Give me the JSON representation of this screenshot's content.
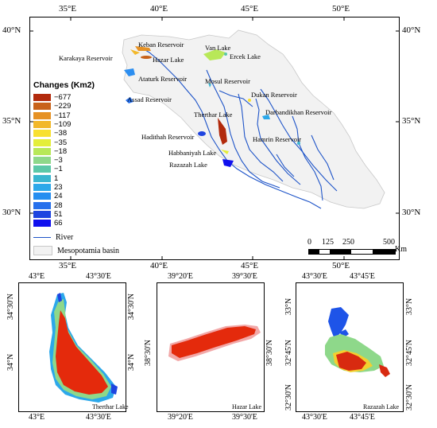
{
  "main_map": {
    "top_lon": [
      "35°E",
      "40°E",
      "45°E",
      "50°E"
    ],
    "bottom_lon": [
      "35°E",
      "40°E",
      "45°E",
      "50°E"
    ],
    "left_lat": [
      "40°N",
      "35°N",
      "30°N"
    ],
    "right_lat": [
      "40°N",
      "35°N",
      "30°N"
    ],
    "places": {
      "keban": "Keban Reservoir",
      "van": "Van Lake",
      "ercek": "Ercek Lake",
      "karakaya": "Karakaya Reservoir",
      "hazar": "Hazar Lake",
      "ataturk": "Ataturk Reservoir",
      "mosul": "Mosul Reservoir",
      "dukan": "Dukan Reservoir",
      "assad": "Assad Reservoir",
      "therthar": "Therthar Lake",
      "darbandikhan": "Darbandikhan Reservoir",
      "haditha": "Hadithah Reservoir",
      "hamrin": "Hamrin Reservoir",
      "habbaniyah": "Habbaniyah Lake",
      "razazah": "Razazah Lake"
    },
    "legend": {
      "title": "Changes (Km2)",
      "items": [
        {
          "label": "−677",
          "color": "#b22a0c"
        },
        {
          "label": "−229",
          "color": "#c8621a"
        },
        {
          "label": "−117",
          "color": "#e69225"
        },
        {
          "label": "−109",
          "color": "#f2b82a"
        },
        {
          "label": "−38",
          "color": "#f8e030"
        },
        {
          "label": "−35",
          "color": "#e4ee3a"
        },
        {
          "label": "−18",
          "color": "#b8e858"
        },
        {
          "label": "−3",
          "color": "#8ed88a"
        },
        {
          "label": "−1",
          "color": "#5cc8a8"
        },
        {
          "label": "1",
          "color": "#3ab6d0"
        },
        {
          "label": "23",
          "color": "#2ca8ea"
        },
        {
          "label": "24",
          "color": "#268ef0"
        },
        {
          "label": "28",
          "color": "#2670ec"
        },
        {
          "label": "51",
          "color": "#1e44e0"
        },
        {
          "label": "66",
          "color": "#1010ee"
        }
      ],
      "river_label": "River",
      "basin_label": "Mesopotamia basin",
      "river_color": "#1e54c8",
      "basin_color": "#f2f2f2"
    },
    "scale": {
      "labels": [
        "0",
        "125",
        "250",
        "500"
      ],
      "unit": "Km"
    }
  },
  "insets": [
    {
      "name": "Therthar Lake",
      "top_lon": [
        "43°E",
        "43°30'E"
      ],
      "bottom_lon": [
        "43°E",
        "43°30'E"
      ],
      "left_lat": [
        "34°30'N",
        "34°N"
      ],
      "right_lat": [
        "34°30'N",
        "34°N"
      ]
    },
    {
      "name": "Hazar Lake",
      "top_lon": [
        "39°20'E",
        "39°30'E"
      ],
      "bottom_lon": [
        "39°20'E",
        "39°30'E"
      ],
      "left_lat": [
        "38°30'N"
      ],
      "right_lat": [
        "38°30'N"
      ]
    },
    {
      "name": "Razazah Lake",
      "top_lon": [
        "43°30'E",
        "43°45'E"
      ],
      "bottom_lon": [
        "43°30'E",
        "43°45'E"
      ],
      "left_lat": [
        "33°N",
        "32°45'N",
        "32°30'N"
      ],
      "right_lat": [
        "33°N",
        "32°45'N",
        "32°30'N"
      ]
    }
  ]
}
